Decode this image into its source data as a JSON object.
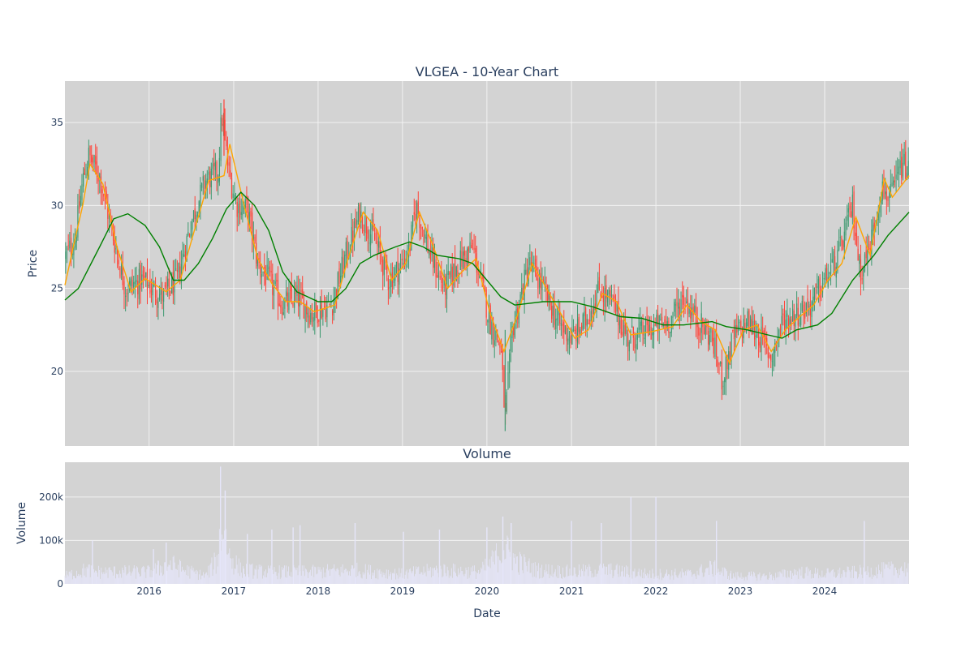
{
  "colors": {
    "plot_bg": "#d3d3d3",
    "grid": "#f2f2f2",
    "up": "#3d9970",
    "down": "#ff4136",
    "ma_short": "#ffa500",
    "ma_long": "#008000",
    "volume": "#e6e6fa",
    "text": "#2a3f5f"
  },
  "chart_data": [
    {
      "type": "candlestick",
      "title": "VLGEA - 10-Year Chart",
      "ylabel": "Price",
      "xlabel": "",
      "xlim": [
        "2015-01-02",
        "2024-12-31"
      ],
      "ylim": [
        15.5,
        37.5
      ],
      "yticks": [
        20,
        25,
        30,
        35
      ],
      "xticks": [
        "2016",
        "2017",
        "2018",
        "2019",
        "2020",
        "2021",
        "2022",
        "2023",
        "2024"
      ],
      "grid": true,
      "close_path": [
        [
          "2015-01-02",
          26.9
        ],
        [
          "2015-02-15",
          28.0
        ],
        [
          "2015-03-20",
          31.5
        ],
        [
          "2015-04-15",
          33.0
        ],
        [
          "2015-06-01",
          31.8
        ],
        [
          "2015-08-01",
          28.0
        ],
        [
          "2015-09-20",
          25.0
        ],
        [
          "2015-12-01",
          25.5
        ],
        [
          "2016-03-01",
          24.5
        ],
        [
          "2016-05-01",
          25.5
        ],
        [
          "2016-07-01",
          29.0
        ],
        [
          "2016-09-01",
          31.5
        ],
        [
          "2016-10-25",
          32.0
        ],
        [
          "2016-11-10",
          35.5
        ],
        [
          "2016-12-10",
          32.0
        ],
        [
          "2017-01-15",
          30.0
        ],
        [
          "2017-03-01",
          29.8
        ],
        [
          "2017-04-15",
          26.5
        ],
        [
          "2017-06-01",
          25.5
        ],
        [
          "2017-08-01",
          24.0
        ],
        [
          "2017-10-01",
          24.5
        ],
        [
          "2017-12-01",
          23.5
        ],
        [
          "2018-03-01",
          24.0
        ],
        [
          "2018-05-01",
          27.0
        ],
        [
          "2018-07-01",
          29.5
        ],
        [
          "2018-09-01",
          28.0
        ],
        [
          "2018-11-01",
          25.5
        ],
        [
          "2019-01-01",
          26.5
        ],
        [
          "2019-02-01",
          27.5
        ],
        [
          "2019-03-01",
          30.0
        ],
        [
          "2019-05-01",
          27.0
        ],
        [
          "2019-07-01",
          25.0
        ],
        [
          "2019-09-01",
          26.5
        ],
        [
          "2019-11-01",
          27.5
        ],
        [
          "2020-01-15",
          23.0
        ],
        [
          "2020-03-01",
          21.5
        ],
        [
          "2020-03-20",
          17.0
        ],
        [
          "2020-04-20",
          22.5
        ],
        [
          "2020-07-01",
          26.5
        ],
        [
          "2020-09-01",
          25.0
        ],
        [
          "2020-11-01",
          23.0
        ],
        [
          "2021-01-01",
          22.0
        ],
        [
          "2021-03-01",
          23.0
        ],
        [
          "2021-05-01",
          25.0
        ],
        [
          "2021-07-01",
          24.0
        ],
        [
          "2021-09-01",
          22.0
        ],
        [
          "2021-12-01",
          22.5
        ],
        [
          "2022-03-01",
          23.0
        ],
        [
          "2022-05-01",
          24.5
        ],
        [
          "2022-07-01",
          23.0
        ],
        [
          "2022-09-01",
          22.0
        ],
        [
          "2022-10-15",
          19.5
        ],
        [
          "2022-12-01",
          22.0
        ],
        [
          "2023-02-01",
          23.0
        ],
        [
          "2023-04-01",
          22.0
        ],
        [
          "2023-05-15",
          20.8
        ],
        [
          "2023-07-01",
          23.0
        ],
        [
          "2023-09-01",
          23.5
        ],
        [
          "2023-11-01",
          24.0
        ],
        [
          "2024-01-01",
          25.5
        ],
        [
          "2024-03-01",
          27.0
        ],
        [
          "2024-05-01",
          30.0
        ],
        [
          "2024-06-01",
          26.0
        ],
        [
          "2024-07-15",
          27.5
        ],
        [
          "2024-09-01",
          31.0
        ],
        [
          "2024-10-15",
          30.5
        ],
        [
          "2024-12-01",
          32.5
        ],
        [
          "2024-12-31",
          32.0
        ]
      ],
      "series": [
        {
          "type": "line",
          "role": "moving_average_short",
          "color": "#ffa500",
          "points": [
            [
              "2015-01-02",
              25.2
            ],
            [
              "2015-02-15",
              28.0
            ],
            [
              "2015-03-20",
              30.0
            ],
            [
              "2015-04-20",
              32.5
            ],
            [
              "2015-06-15",
              31.3
            ],
            [
              "2015-08-15",
              27.5
            ],
            [
              "2015-10-15",
              24.8
            ],
            [
              "2015-12-15",
              25.6
            ],
            [
              "2016-03-15",
              24.8
            ],
            [
              "2016-05-15",
              25.5
            ],
            [
              "2016-07-15",
              28.5
            ],
            [
              "2016-09-15",
              31.5
            ],
            [
              "2016-11-20",
              31.8
            ],
            [
              "2016-12-15",
              33.7
            ],
            [
              "2017-02-15",
              30.0
            ],
            [
              "2017-04-15",
              26.8
            ],
            [
              "2017-06-15",
              25.3
            ],
            [
              "2017-08-15",
              24.2
            ],
            [
              "2017-10-15",
              24.2
            ],
            [
              "2017-12-15",
              23.6
            ],
            [
              "2018-03-15",
              24.0
            ],
            [
              "2018-05-15",
              27.0
            ],
            [
              "2018-07-15",
              29.6
            ],
            [
              "2018-09-15",
              28.5
            ],
            [
              "2018-11-15",
              25.5
            ],
            [
              "2019-01-15",
              26.5
            ],
            [
              "2019-03-15",
              29.6
            ],
            [
              "2019-05-15",
              27.5
            ],
            [
              "2019-07-15",
              25.0
            ],
            [
              "2019-09-15",
              26.0
            ],
            [
              "2019-11-15",
              26.8
            ],
            [
              "2020-01-15",
              23.5
            ],
            [
              "2020-03-15",
              21.2
            ],
            [
              "2020-05-15",
              23.5
            ],
            [
              "2020-07-15",
              26.5
            ],
            [
              "2020-09-15",
              25.0
            ],
            [
              "2020-11-15",
              23.5
            ],
            [
              "2021-01-15",
              22.0
            ],
            [
              "2021-03-15",
              22.5
            ],
            [
              "2021-05-15",
              24.7
            ],
            [
              "2021-07-15",
              24.2
            ],
            [
              "2021-09-15",
              22.2
            ],
            [
              "2021-12-15",
              22.4
            ],
            [
              "2022-03-15",
              22.7
            ],
            [
              "2022-05-15",
              24.0
            ],
            [
              "2022-07-15",
              23.0
            ],
            [
              "2022-09-15",
              22.5
            ],
            [
              "2022-11-15",
              20.5
            ],
            [
              "2023-01-15",
              22.5
            ],
            [
              "2023-03-15",
              22.8
            ],
            [
              "2023-05-15",
              21.2
            ],
            [
              "2023-07-15",
              22.5
            ],
            [
              "2023-09-15",
              23.3
            ],
            [
              "2023-11-15",
              24.0
            ],
            [
              "2024-01-15",
              25.5
            ],
            [
              "2024-03-15",
              26.5
            ],
            [
              "2024-05-15",
              29.3
            ],
            [
              "2024-07-15",
              27.0
            ],
            [
              "2024-09-15",
              31.6
            ],
            [
              "2024-10-20",
              30.5
            ],
            [
              "2024-12-31",
              31.8
            ]
          ]
        },
        {
          "type": "line",
          "role": "moving_average_long",
          "color": "#008000",
          "points": [
            [
              "2015-01-02",
              24.3
            ],
            [
              "2015-03-01",
              25.0
            ],
            [
              "2015-06-01",
              27.5
            ],
            [
              "2015-08-01",
              29.2
            ],
            [
              "2015-10-01",
              29.5
            ],
            [
              "2015-12-15",
              28.8
            ],
            [
              "2016-02-15",
              27.5
            ],
            [
              "2016-04-15",
              25.5
            ],
            [
              "2016-06-01",
              25.5
            ],
            [
              "2016-08-01",
              26.5
            ],
            [
              "2016-10-01",
              28.0
            ],
            [
              "2016-12-01",
              29.8
            ],
            [
              "2017-02-01",
              30.8
            ],
            [
              "2017-04-01",
              30.0
            ],
            [
              "2017-06-01",
              28.5
            ],
            [
              "2017-08-01",
              26.0
            ],
            [
              "2017-10-01",
              24.8
            ],
            [
              "2018-01-01",
              24.2
            ],
            [
              "2018-03-01",
              24.2
            ],
            [
              "2018-05-01",
              25.0
            ],
            [
              "2018-07-01",
              26.5
            ],
            [
              "2018-09-01",
              27.0
            ],
            [
              "2018-12-01",
              27.5
            ],
            [
              "2019-02-01",
              27.8
            ],
            [
              "2019-04-01",
              27.5
            ],
            [
              "2019-06-01",
              27.0
            ],
            [
              "2019-09-01",
              26.8
            ],
            [
              "2019-11-01",
              26.5
            ],
            [
              "2020-01-01",
              25.5
            ],
            [
              "2020-03-01",
              24.5
            ],
            [
              "2020-05-01",
              24.0
            ],
            [
              "2020-09-01",
              24.2
            ],
            [
              "2021-01-01",
              24.2
            ],
            [
              "2021-04-01",
              23.9
            ],
            [
              "2021-08-01",
              23.3
            ],
            [
              "2021-11-01",
              23.2
            ],
            [
              "2022-02-01",
              22.8
            ],
            [
              "2022-05-01",
              22.8
            ],
            [
              "2022-09-01",
              23.0
            ],
            [
              "2022-11-01",
              22.7
            ],
            [
              "2023-02-01",
              22.5
            ],
            [
              "2023-05-01",
              22.2
            ],
            [
              "2023-07-01",
              22.0
            ],
            [
              "2023-09-01",
              22.5
            ],
            [
              "2023-12-01",
              22.8
            ],
            [
              "2024-02-01",
              23.5
            ],
            [
              "2024-05-01",
              25.5
            ],
            [
              "2024-08-01",
              27.0
            ],
            [
              "2024-10-01",
              28.2
            ],
            [
              "2024-12-31",
              29.6
            ]
          ]
        }
      ]
    },
    {
      "type": "bar",
      "title": "Volume",
      "ylabel": "Volume",
      "xlabel": "Date",
      "xlim": [
        "2015-01-02",
        "2024-12-31"
      ],
      "ylim": [
        0,
        280000
      ],
      "yticks": [
        0,
        100000,
        200000
      ],
      "ytick_labels": [
        "0",
        "100k",
        "200k"
      ],
      "xticks": [
        "2016",
        "2017",
        "2018",
        "2019",
        "2020",
        "2021",
        "2022",
        "2023",
        "2024"
      ],
      "grid": true,
      "volume_envelope": [
        [
          "2015-01-02",
          20000
        ],
        [
          "2015-04-01",
          35000
        ],
        [
          "2015-06-01",
          30000
        ],
        [
          "2016-01-01",
          30000
        ],
        [
          "2016-04-01",
          50000
        ],
        [
          "2016-06-01",
          35000
        ],
        [
          "2016-09-01",
          20000
        ],
        [
          "2016-10-20",
          60000
        ],
        [
          "2016-11-10",
          150000
        ],
        [
          "2016-12-15",
          70000
        ],
        [
          "2017-02-01",
          35000
        ],
        [
          "2017-06-01",
          30000
        ],
        [
          "2017-12-01",
          30000
        ],
        [
          "2018-06-01",
          35000
        ],
        [
          "2019-01-01",
          25000
        ],
        [
          "2019-06-01",
          35000
        ],
        [
          "2019-12-01",
          30000
        ],
        [
          "2020-01-15",
          50000
        ],
        [
          "2020-03-15",
          90000
        ],
        [
          "2020-05-01",
          60000
        ],
        [
          "2020-08-01",
          35000
        ],
        [
          "2021-01-01",
          30000
        ],
        [
          "2021-06-01",
          35000
        ],
        [
          "2021-12-01",
          25000
        ],
        [
          "2022-06-01",
          25000
        ],
        [
          "2022-09-01",
          40000
        ],
        [
          "2022-12-01",
          20000
        ],
        [
          "2023-06-01",
          20000
        ],
        [
          "2023-09-01",
          30000
        ],
        [
          "2024-01-01",
          25000
        ],
        [
          "2024-06-01",
          30000
        ],
        [
          "2024-12-31",
          40000
        ]
      ],
      "volume_spikes": [
        [
          "2015-05-01",
          100000
        ],
        [
          "2016-01-20",
          80000
        ],
        [
          "2016-03-15",
          95000
        ],
        [
          "2016-11-05",
          270000
        ],
        [
          "2016-11-25",
          215000
        ],
        [
          "2017-03-01",
          115000
        ],
        [
          "2017-06-15",
          125000
        ],
        [
          "2017-09-15",
          130000
        ],
        [
          "2017-10-15",
          135000
        ],
        [
          "2018-06-10",
          140000
        ],
        [
          "2019-01-05",
          120000
        ],
        [
          "2019-06-10",
          125000
        ],
        [
          "2020-01-01",
          130000
        ],
        [
          "2020-03-10",
          155000
        ],
        [
          "2020-04-15",
          140000
        ],
        [
          "2021-01-01",
          145000
        ],
        [
          "2021-05-10",
          140000
        ],
        [
          "2021-09-15",
          200000
        ],
        [
          "2022-01-01",
          200000
        ],
        [
          "2022-09-20",
          145000
        ],
        [
          "2024-06-20",
          145000
        ]
      ]
    }
  ]
}
